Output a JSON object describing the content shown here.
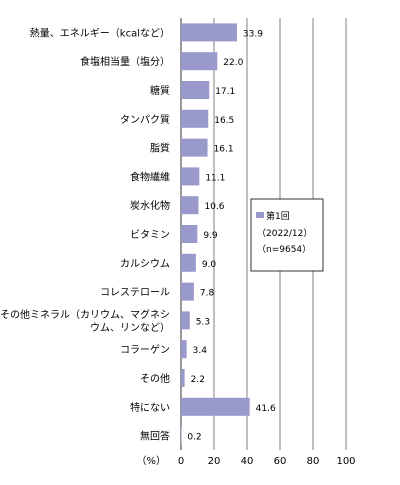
{
  "chart_data": {
    "type": "bar",
    "orientation": "horizontal",
    "categories": [
      "熱量、エネルギー（kcalなど）",
      "食塩相当量（塩分）",
      "糖質",
      "タンパク質",
      "脂質",
      "食物繊維",
      "炭水化物",
      "ビタミン",
      "カルシウム",
      "コレステロール",
      "その他ミネラル（カリウム、マグネシウム、リンなど）",
      "コラーゲン",
      "その他",
      "特にない",
      "無回答"
    ],
    "category_lines": [
      [
        "熱量、エネルギー（kcalなど）"
      ],
      [
        "食塩相当量（塩分）"
      ],
      [
        "糖質"
      ],
      [
        "タンパク質"
      ],
      [
        "脂質"
      ],
      [
        "食物繊維"
      ],
      [
        "炭水化物"
      ],
      [
        "ビタミン"
      ],
      [
        "カルシウム"
      ],
      [
        "コレステロール"
      ],
      [
        "その他ミネラル（カリウム、マグネシ",
        "ウム、リンなど）"
      ],
      [
        "コラーゲン"
      ],
      [
        "その他"
      ],
      [
        "特にない"
      ],
      [
        "無回答"
      ]
    ],
    "values": [
      33.9,
      22.0,
      17.1,
      16.5,
      16.1,
      11.1,
      10.6,
      9.9,
      9.0,
      7.8,
      5.3,
      3.4,
      2.2,
      41.6,
      0.2
    ],
    "value_labels": [
      "33.9",
      "22.0",
      "17.1",
      "16.5",
      "16.1",
      "11.1",
      "10.6",
      "9.9",
      "9.0",
      "7.8",
      "5.3",
      "3.4",
      "2.2",
      "41.6",
      "0.2"
    ],
    "xlim": [
      0,
      100
    ],
    "xticks": [
      0,
      20,
      40,
      60,
      80,
      100
    ],
    "unit_label": "（%）",
    "grid": true,
    "legend": {
      "placement": "center-right",
      "series_name": "第1回",
      "lines": [
        "（2022/12）",
        "（n=9654）"
      ]
    },
    "bar_color": "#9999cc"
  }
}
